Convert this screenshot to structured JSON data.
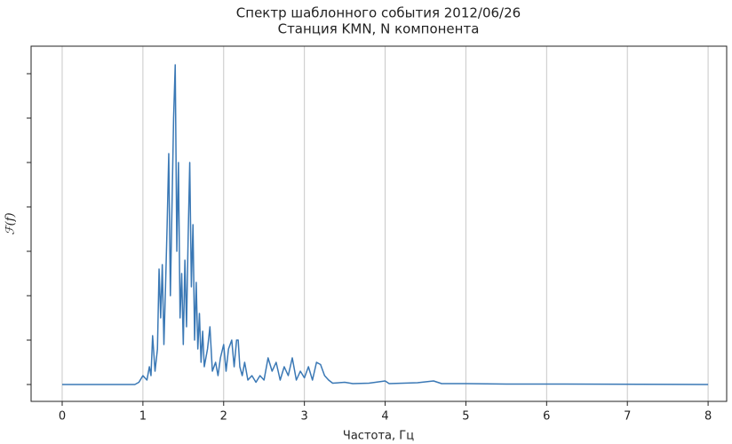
{
  "chart_data": {
    "type": "line",
    "title": "Спектр шаблонного события 2012/06/26",
    "subtitle": "Станция KMN, N компонента",
    "xlabel": "Частота, Гц",
    "ylabel": "ℱ(f)",
    "xlim": [
      -0.385,
      8.23
    ],
    "ylim": [
      -0.38,
      7.62
    ],
    "xticks": [
      0,
      1,
      2,
      3,
      4,
      5,
      6,
      7,
      8
    ],
    "yticks": [
      0,
      1,
      2,
      3,
      4,
      5,
      6,
      7
    ],
    "grid": true,
    "series": [
      {
        "color": "#3a78b5",
        "x": [
          0,
          0.9,
          0.95,
          1.0,
          1.05,
          1.08,
          1.1,
          1.12,
          1.15,
          1.18,
          1.2,
          1.22,
          1.24,
          1.26,
          1.28,
          1.3,
          1.32,
          1.34,
          1.36,
          1.38,
          1.4,
          1.42,
          1.44,
          1.46,
          1.48,
          1.5,
          1.52,
          1.54,
          1.56,
          1.58,
          1.6,
          1.62,
          1.64,
          1.66,
          1.68,
          1.7,
          1.72,
          1.74,
          1.76,
          1.8,
          1.83,
          1.86,
          1.9,
          1.93,
          1.96,
          2.0,
          2.03,
          2.06,
          2.1,
          2.13,
          2.16,
          2.18,
          2.2,
          2.23,
          2.26,
          2.3,
          2.35,
          2.4,
          2.45,
          2.5,
          2.55,
          2.6,
          2.65,
          2.7,
          2.75,
          2.8,
          2.85,
          2.9,
          2.95,
          3.0,
          3.05,
          3.1,
          3.15,
          3.2,
          3.25,
          3.3,
          3.35,
          3.5,
          3.6,
          3.8,
          4.0,
          4.05,
          4.4,
          4.6,
          4.7,
          5.0,
          5.5,
          6.0,
          8.0
        ],
        "values": [
          0,
          0,
          0.05,
          0.2,
          0.1,
          0.4,
          0.2,
          1.1,
          0.3,
          0.8,
          2.6,
          1.5,
          2.7,
          0.9,
          2.2,
          3.6,
          5.2,
          2.0,
          4.0,
          6.0,
          7.2,
          3.0,
          5.0,
          1.5,
          2.5,
          0.9,
          2.8,
          1.3,
          3.3,
          5.0,
          2.2,
          3.6,
          1.0,
          2.3,
          0.8,
          1.6,
          0.5,
          1.2,
          0.4,
          0.8,
          1.3,
          0.3,
          0.5,
          0.2,
          0.6,
          0.9,
          0.3,
          0.8,
          1.0,
          0.4,
          1.0,
          1.0,
          0.4,
          0.2,
          0.5,
          0.1,
          0.2,
          0.05,
          0.2,
          0.1,
          0.6,
          0.3,
          0.5,
          0.1,
          0.4,
          0.2,
          0.6,
          0.1,
          0.3,
          0.15,
          0.4,
          0.1,
          0.5,
          0.45,
          0.2,
          0.1,
          0.03,
          0.05,
          0.02,
          0.03,
          0.08,
          0.02,
          0.04,
          0.08,
          0.02,
          0.02,
          0.01,
          0.01,
          0
        ]
      }
    ]
  }
}
